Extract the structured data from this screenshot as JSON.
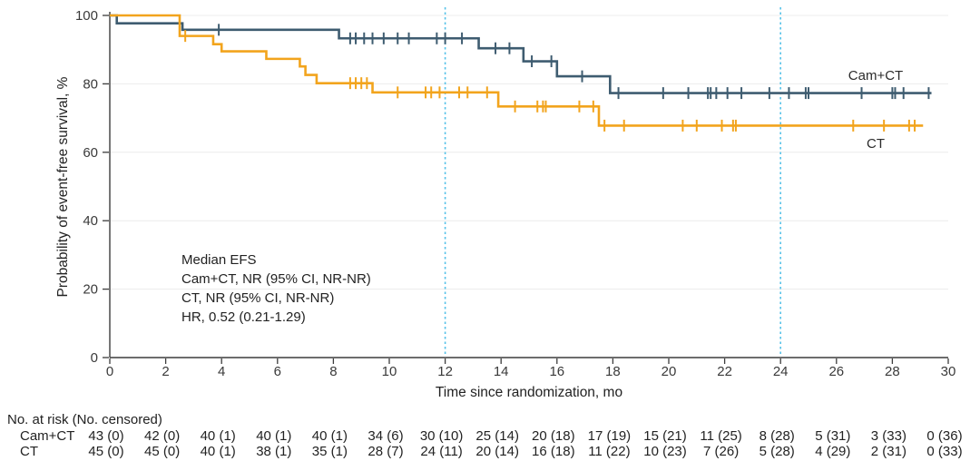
{
  "colors": {
    "cam_ct_line": "#3E5C70",
    "ct_line": "#F2A41D",
    "reference_line": "#56C2E8",
    "grid_line": "#ECECEC",
    "axis": "#3C3C3C",
    "text": "#2B2B2B"
  },
  "chart_data": {
    "type": "line",
    "subtype": "kaplan-meier-step",
    "title": "",
    "xlabel": "Time since randomization, mo",
    "ylabel": "Probability of event-free survival, %",
    "xlim": [
      0,
      30
    ],
    "ylim": [
      0,
      100
    ],
    "x_ticks": [
      0,
      2,
      4,
      6,
      8,
      10,
      12,
      14,
      16,
      18,
      20,
      22,
      24,
      26,
      28,
      30
    ],
    "y_ticks": [
      0,
      20,
      40,
      60,
      80,
      100
    ],
    "grid": "horizontal",
    "legend_position": "inline-curve-labels",
    "reference_lines_x": [
      12,
      24
    ],
    "annotations": [
      "Median EFS",
      "Cam+CT, NR (95% CI, NR-NR)",
      "CT, NR (95% CI, NR-NR)",
      "HR, 0.52 (0.21-1.29)"
    ],
    "series": [
      {
        "name": "Cam+CT",
        "color": "#3E5C70",
        "steps": [
          [
            0,
            100
          ],
          [
            0.25,
            97.7
          ],
          [
            2.6,
            95.8
          ],
          [
            8.2,
            93.3
          ],
          [
            13.2,
            90.4
          ],
          [
            14.8,
            86.6
          ],
          [
            16,
            82.2
          ],
          [
            17.9,
            77.3
          ]
        ],
        "end_x": 29.4,
        "censor_groups": [
          {
            "y": 95.8,
            "x": [
              3.9
            ]
          },
          {
            "y": 93.3,
            "x": [
              8.6,
              8.8,
              9.1,
              9.4,
              9.8,
              10.3,
              10.7,
              11.7,
              12.0,
              12.6
            ]
          },
          {
            "y": 90.4,
            "x": [
              13.8,
              14.3
            ]
          },
          {
            "y": 86.6,
            "x": [
              15.1,
              15.8
            ]
          },
          {
            "y": 82.2,
            "x": [
              16.9
            ]
          },
          {
            "y": 77.3,
            "x": [
              18.2,
              19.8,
              20.7,
              21.4,
              21.5,
              21.7,
              22.1,
              22.6,
              23.6,
              24.3,
              24.9,
              25.0,
              26.9,
              28.0,
              28.1,
              28.4,
              29.3
            ]
          }
        ]
      },
      {
        "name": "CT",
        "color": "#F2A41D",
        "steps": [
          [
            0,
            100
          ],
          [
            2.5,
            94.0
          ],
          [
            3.7,
            91.6
          ],
          [
            4.0,
            89.5
          ],
          [
            5.6,
            87.3
          ],
          [
            6.8,
            85.1
          ],
          [
            7.0,
            82.6
          ],
          [
            7.4,
            80.2
          ],
          [
            9.4,
            77.5
          ],
          [
            13.9,
            73.4
          ],
          [
            17.5,
            67.8
          ]
        ],
        "end_x": 29.1,
        "censor_groups": [
          {
            "y": 94.0,
            "x": [
              2.7
            ]
          },
          {
            "y": 80.2,
            "x": [
              8.6,
              8.8,
              9.0,
              9.2
            ]
          },
          {
            "y": 77.5,
            "x": [
              10.3,
              11.3,
              11.5,
              11.8,
              12.5,
              12.8,
              13.5
            ]
          },
          {
            "y": 73.4,
            "x": [
              14.5,
              15.3,
              15.5,
              15.6,
              16.8,
              17.3
            ]
          },
          {
            "y": 67.8,
            "x": [
              17.7,
              18.4,
              20.5,
              21.0,
              21.9,
              22.3,
              22.4,
              26.6,
              27.7,
              28.6,
              28.8
            ]
          }
        ]
      }
    ],
    "at_risk": {
      "header": "No. at risk (No. censored)",
      "times": [
        0,
        2,
        4,
        6,
        8,
        10,
        12,
        14,
        16,
        18,
        20,
        22,
        24,
        26,
        28,
        30
      ],
      "rows": [
        {
          "label": "Cam+CT",
          "at_risk": [
            43,
            42,
            40,
            40,
            40,
            34,
            30,
            25,
            20,
            17,
            15,
            11,
            8,
            5,
            3,
            0
          ],
          "censored": [
            0,
            0,
            1,
            1,
            1,
            6,
            10,
            14,
            18,
            19,
            21,
            25,
            28,
            31,
            33,
            36
          ]
        },
        {
          "label": "CT",
          "at_risk": [
            45,
            45,
            40,
            38,
            35,
            28,
            24,
            20,
            16,
            11,
            10,
            7,
            5,
            4,
            2,
            0
          ],
          "censored": [
            0,
            0,
            1,
            1,
            1,
            7,
            11,
            14,
            18,
            22,
            23,
            26,
            28,
            29,
            31,
            33
          ]
        }
      ]
    }
  }
}
